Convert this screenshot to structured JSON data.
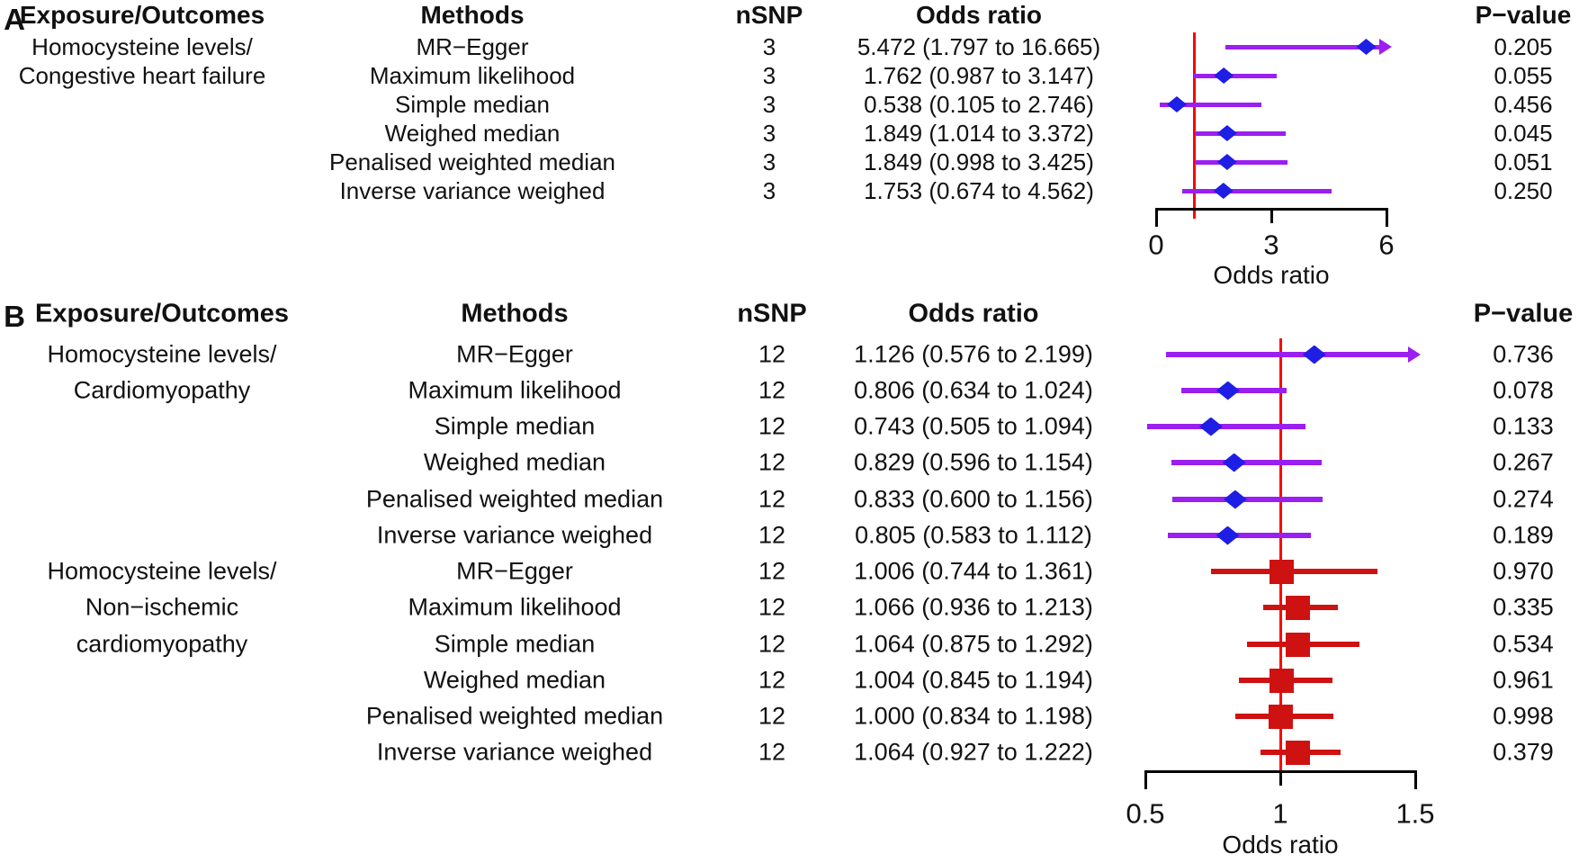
{
  "style": {
    "background": "#ffffff",
    "text_color": "#111111",
    "axis_color": "#000000",
    "ref_line_color": "#ff0000",
    "group_styles": {
      "blue_diamond": {
        "ci_color": "#9b1ff0",
        "marker_color": "#1e1ee4",
        "marker": "diamond"
      },
      "red_square": {
        "ci_color": "#ce1212",
        "marker_color": "#ce1212",
        "marker": "square"
      }
    }
  },
  "chart_data": [
    {
      "type": "forest",
      "panel_letter": "A",
      "column_headers": {
        "exposure": "Exposure/Outcomes",
        "methods": "Methods",
        "nsnp": "nSNP",
        "or": "Odds ratio",
        "pvalue": "P−value"
      },
      "axis": {
        "label": "Odds ratio",
        "min": 0,
        "max": 6,
        "tick_values": [
          0,
          3,
          6
        ],
        "tick_labels": [
          "0",
          "3",
          "6"
        ],
        "ref_value": 1
      },
      "groups": [
        {
          "exposure_lines": [
            "Homocysteine levels/",
            "Congestive heart failure"
          ],
          "style": "blue_diamond",
          "rows": [
            {
              "method": "MR−Egger",
              "nsnp": "3",
              "or": 5.472,
              "ci_lo": 1.797,
              "ci_hi": 16.665,
              "or_text": "5.472 (1.797 to 16.665)",
              "pvalue": "0.205"
            },
            {
              "method": "Maximum likelihood",
              "nsnp": "3",
              "or": 1.762,
              "ci_lo": 0.987,
              "ci_hi": 3.147,
              "or_text": "1.762 (0.987 to 3.147)",
              "pvalue": "0.055"
            },
            {
              "method": "Simple median",
              "nsnp": "3",
              "or": 0.538,
              "ci_lo": 0.105,
              "ci_hi": 2.746,
              "or_text": "0.538 (0.105 to 2.746)",
              "pvalue": "0.456"
            },
            {
              "method": "Weighed median",
              "nsnp": "3",
              "or": 1.849,
              "ci_lo": 1.014,
              "ci_hi": 3.372,
              "or_text": "1.849 (1.014 to 3.372)",
              "pvalue": "0.045"
            },
            {
              "method": "Penalised weighted median",
              "nsnp": "3",
              "or": 1.849,
              "ci_lo": 0.998,
              "ci_hi": 3.425,
              "or_text": "1.849 (0.998 to 3.425)",
              "pvalue": "0.051"
            },
            {
              "method": "Inverse variance weighed",
              "nsnp": "3",
              "or": 1.753,
              "ci_lo": 0.674,
              "ci_hi": 4.562,
              "or_text": "1.753 (0.674 to 4.562)",
              "pvalue": "0.250"
            }
          ]
        }
      ]
    },
    {
      "type": "forest",
      "panel_letter": "B",
      "column_headers": {
        "exposure": "Exposure/Outcomes",
        "methods": "Methods",
        "nsnp": "nSNP",
        "or": "Odds ratio",
        "pvalue": "P−value"
      },
      "axis": {
        "label": "Odds ratio",
        "min": 0.5,
        "max": 1.5,
        "tick_values": [
          0.5,
          1,
          1.5
        ],
        "tick_labels": [
          "0.5",
          "1",
          "1.5"
        ],
        "ref_value": 1
      },
      "groups": [
        {
          "exposure_lines": [
            "Homocysteine levels/",
            "Cardiomyopathy"
          ],
          "style": "blue_diamond",
          "rows": [
            {
              "method": "MR−Egger",
              "nsnp": "12",
              "or": 1.126,
              "ci_lo": 0.576,
              "ci_hi": 2.199,
              "or_text": "1.126 (0.576 to 2.199)",
              "pvalue": "0.736"
            },
            {
              "method": "Maximum likelihood",
              "nsnp": "12",
              "or": 0.806,
              "ci_lo": 0.634,
              "ci_hi": 1.024,
              "or_text": "0.806 (0.634 to 1.024)",
              "pvalue": "0.078"
            },
            {
              "method": "Simple median",
              "nsnp": "12",
              "or": 0.743,
              "ci_lo": 0.505,
              "ci_hi": 1.094,
              "or_text": "0.743 (0.505 to 1.094)",
              "pvalue": "0.133"
            },
            {
              "method": "Weighed median",
              "nsnp": "12",
              "or": 0.829,
              "ci_lo": 0.596,
              "ci_hi": 1.154,
              "or_text": "0.829 (0.596 to 1.154)",
              "pvalue": "0.267"
            },
            {
              "method": "Penalised weighted median",
              "nsnp": "12",
              "or": 0.833,
              "ci_lo": 0.6,
              "ci_hi": 1.156,
              "or_text": "0.833 (0.600 to 1.156)",
              "pvalue": "0.274"
            },
            {
              "method": "Inverse variance weighed",
              "nsnp": "12",
              "or": 0.805,
              "ci_lo": 0.583,
              "ci_hi": 1.112,
              "or_text": "0.805 (0.583 to 1.112)",
              "pvalue": "0.189"
            }
          ]
        },
        {
          "exposure_lines": [
            "Homocysteine levels/",
            "Non−ischemic",
            "cardiomyopathy"
          ],
          "style": "red_square",
          "rows": [
            {
              "method": "MR−Egger",
              "nsnp": "12",
              "or": 1.006,
              "ci_lo": 0.744,
              "ci_hi": 1.361,
              "or_text": "1.006 (0.744 to 1.361)",
              "pvalue": "0.970"
            },
            {
              "method": "Maximum likelihood",
              "nsnp": "12",
              "or": 1.066,
              "ci_lo": 0.936,
              "ci_hi": 1.213,
              "or_text": "1.066 (0.936 to 1.213)",
              "pvalue": "0.335"
            },
            {
              "method": "Simple median",
              "nsnp": "12",
              "or": 1.064,
              "ci_lo": 0.875,
              "ci_hi": 1.292,
              "or_text": "1.064 (0.875 to 1.292)",
              "pvalue": "0.534"
            },
            {
              "method": "Weighed median",
              "nsnp": "12",
              "or": 1.004,
              "ci_lo": 0.845,
              "ci_hi": 1.194,
              "or_text": "1.004 (0.845 to 1.194)",
              "pvalue": "0.961"
            },
            {
              "method": "Penalised weighted median",
              "nsnp": "12",
              "or": 1.0,
              "ci_lo": 0.834,
              "ci_hi": 1.198,
              "or_text": "1.000 (0.834 to 1.198)",
              "pvalue": "0.998"
            },
            {
              "method": "Inverse variance weighed",
              "nsnp": "12",
              "or": 1.064,
              "ci_lo": 0.927,
              "ci_hi": 1.222,
              "or_text": "1.064 (0.927 to 1.222)",
              "pvalue": "0.379"
            }
          ]
        }
      ]
    }
  ]
}
